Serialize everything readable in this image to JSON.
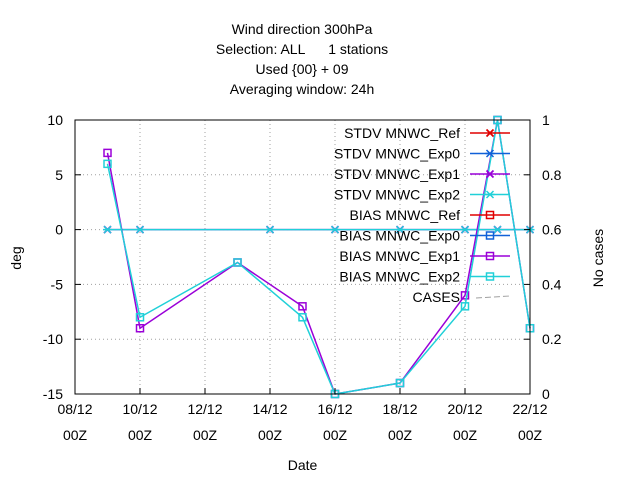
{
  "chart_data": {
    "type": "line",
    "title_lines": [
      "Wind direction 300hPa",
      "Selection: ALL      1 stations",
      "Used {00} + 09",
      "Averaging window: 24h"
    ],
    "xlabel": "Date",
    "ylabel": "deg",
    "y2label": "No cases",
    "xlim": [
      0,
      14
    ],
    "ylim": [
      -15,
      10
    ],
    "y2lim": [
      0,
      1
    ],
    "grid": true,
    "legend_position": "top-right",
    "x_ticks": [
      {
        "x": 0,
        "line1": "08/12",
        "line2": "00Z"
      },
      {
        "x": 2,
        "line1": "10/12",
        "line2": "00Z"
      },
      {
        "x": 4,
        "line1": "12/12",
        "line2": "00Z"
      },
      {
        "x": 6,
        "line1": "14/12",
        "line2": "00Z"
      },
      {
        "x": 8,
        "line1": "16/12",
        "line2": "00Z"
      },
      {
        "x": 10,
        "line1": "18/12",
        "line2": "00Z"
      },
      {
        "x": 12,
        "line1": "20/12",
        "line2": "00Z"
      },
      {
        "x": 14,
        "line1": "22/12",
        "line2": "00Z"
      }
    ],
    "y_ticks": [
      10,
      5,
      0,
      -5,
      -10,
      -15
    ],
    "y2_ticks": [
      "1",
      "0.8",
      "0.6",
      "0.4",
      "0.2",
      "0"
    ],
    "series": [
      {
        "name": "STDV MNWC_Ref",
        "color": "#e00000",
        "marker": "x",
        "x": [],
        "y": []
      },
      {
        "name": "STDV MNWC_Exp0",
        "color": "#1060d8",
        "marker": "star",
        "x": [],
        "y": []
      },
      {
        "name": "STDV MNWC_Exp1",
        "color": "#9a00d8",
        "marker": "x",
        "x": [
          1,
          2,
          6,
          8,
          10,
          12,
          13,
          14
        ],
        "y": [
          0,
          0,
          0,
          0,
          0,
          0,
          0,
          0
        ]
      },
      {
        "name": "STDV MNWC_Exp2",
        "color": "#20d0d8",
        "marker": "star",
        "x": [
          1,
          2,
          6,
          8,
          10,
          12,
          13,
          14
        ],
        "y": [
          0,
          0,
          0,
          0,
          0,
          0,
          0,
          0
        ]
      },
      {
        "name": "BIAS MNWC_Ref",
        "color": "#e00000",
        "marker": "square",
        "x": [],
        "y": []
      },
      {
        "name": "BIAS MNWC_Exp0",
        "color": "#1060d8",
        "marker": "square",
        "x": [],
        "y": []
      },
      {
        "name": "BIAS MNWC_Exp1",
        "color": "#9a00d8",
        "marker": "square",
        "x": [
          1,
          2,
          5,
          7,
          8,
          10,
          12,
          13,
          14
        ],
        "y": [
          7,
          -9,
          -3,
          -7,
          -15,
          -14,
          -6,
          10,
          -9
        ]
      },
      {
        "name": "BIAS MNWC_Exp2",
        "color": "#20d0d8",
        "marker": "square",
        "x": [
          1,
          2,
          5,
          7,
          8,
          10,
          12,
          13,
          14
        ],
        "y": [
          6,
          -8,
          -3,
          -8,
          -15,
          -14,
          -7,
          10,
          -9
        ]
      },
      {
        "name": "CASES",
        "color": "#a0a0a0",
        "marker": "none",
        "dash": true,
        "x": [],
        "y": []
      }
    ]
  }
}
